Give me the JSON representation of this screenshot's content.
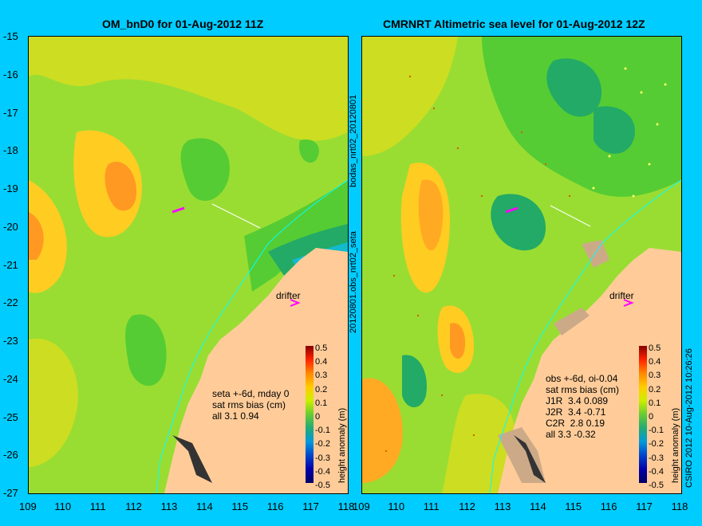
{
  "left_panel": {
    "title": "OM_bnD0 for 01-Aug-2012 11Z",
    "stats_lines": [
      "seta +-6d, mday 0",
      "sat rms bias (cm)",
      "all 3.1 0.94"
    ],
    "drifter_label": "drifter"
  },
  "right_panel": {
    "title": "CMRNRT Altimetric sea level  for 01-Aug-2012 12Z",
    "stats_lines": [
      "obs +-6d, oi-0.04",
      "sat rms bias (cm)",
      "J1R  3.4 0.089",
      "J2R  3.4 -0.71",
      "C2R  2.8 0.19",
      "all 3.3 -0.32"
    ],
    "drifter_label": "drifter"
  },
  "y_ticks": [
    "-15",
    "-16",
    "-17",
    "-18",
    "-19",
    "-20",
    "-21",
    "-22",
    "-23",
    "-24",
    "-25",
    "-26",
    "-27"
  ],
  "x_ticks": [
    "109",
    "110",
    "111",
    "112",
    "113",
    "114",
    "115",
    "116",
    "117",
    "118"
  ],
  "colorbar": {
    "label": "height anomaly (m)",
    "ticks": [
      "0.5",
      "0.4",
      "0.3",
      "0.2",
      "0.1",
      "0",
      "-0.1",
      "-0.2",
      "-0.3",
      "-0.4",
      "-0.5"
    ]
  },
  "middle_label_top": "bodas_nrt02_20120801",
  "middle_label_bottom": "20120801.obs_nrt02_seta",
  "footer_label": "CSIRO 2012  10-Aug-2012 10:26:26",
  "colors": {
    "background": "#00ccff",
    "land": "#ffcc99",
    "coast_line": "#00ffff",
    "drifter": "#ff00ff"
  }
}
